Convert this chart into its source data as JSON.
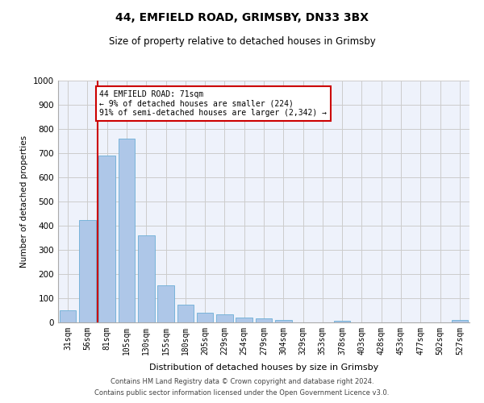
{
  "title1": "44, EMFIELD ROAD, GRIMSBY, DN33 3BX",
  "title2": "Size of property relative to detached houses in Grimsby",
  "xlabel": "Distribution of detached houses by size in Grimsby",
  "ylabel": "Number of detached properties",
  "categories": [
    "31sqm",
    "56sqm",
    "81sqm",
    "105sqm",
    "130sqm",
    "155sqm",
    "180sqm",
    "205sqm",
    "229sqm",
    "254sqm",
    "279sqm",
    "304sqm",
    "329sqm",
    "353sqm",
    "378sqm",
    "403sqm",
    "428sqm",
    "453sqm",
    "477sqm",
    "502sqm",
    "527sqm"
  ],
  "values": [
    50,
    425,
    690,
    760,
    360,
    153,
    75,
    40,
    32,
    20,
    17,
    10,
    0,
    0,
    8,
    0,
    0,
    0,
    0,
    0,
    10
  ],
  "bar_color": "#aec7e8",
  "bar_edge_color": "#6baed6",
  "vline_x": 1.5,
  "vline_color": "#cc0000",
  "annotation_text": "44 EMFIELD ROAD: 71sqm\n← 9% of detached houses are smaller (224)\n91% of semi-detached houses are larger (2,342) →",
  "annotation_box_color": "#ffffff",
  "annotation_box_edge_color": "#cc0000",
  "ylim": [
    0,
    1000
  ],
  "yticks": [
    0,
    100,
    200,
    300,
    400,
    500,
    600,
    700,
    800,
    900,
    1000
  ],
  "footer1": "Contains HM Land Registry data © Crown copyright and database right 2024.",
  "footer2": "Contains public sector information licensed under the Open Government Licence v3.0.",
  "bg_color": "#eef2fb",
  "grid_color": "#cccccc",
  "fig_width": 6.0,
  "fig_height": 5.0
}
